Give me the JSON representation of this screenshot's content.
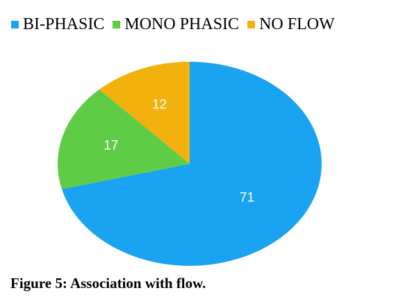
{
  "chart_data": {
    "type": "pie",
    "categories": [
      "BI-PHASIC",
      "MONO PHASIC",
      "NO FLOW"
    ],
    "values": [
      71,
      17,
      12
    ],
    "colors": [
      "#1aa3f0",
      "#5fcc45",
      "#f2b10c"
    ],
    "data_labels": [
      "71",
      "17",
      "12"
    ],
    "legend_placement": "top",
    "title": ""
  },
  "caption": "Figure 5: Association with flow."
}
